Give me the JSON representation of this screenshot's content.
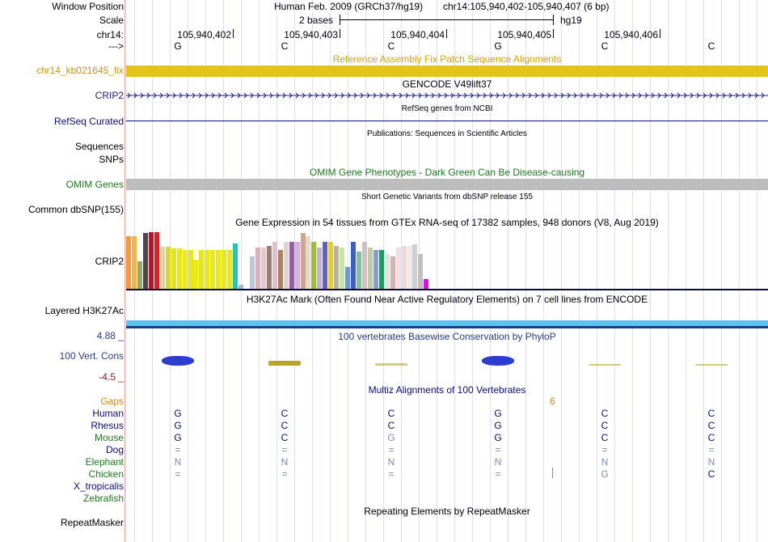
{
  "position": {
    "label": "Window Position",
    "assembly": "Human Feb. 2009 (GRCh37/hg19)",
    "range": "chr14:105,940,402-105,940,407 (6 bp)"
  },
  "scale": {
    "label": "Scale",
    "text": "2 bases",
    "db": "hg19"
  },
  "ruler": {
    "label": "chr14:",
    "coords": [
      "105,940,402",
      "105,940,403",
      "105,940,404",
      "105,940,405",
      "105,940,406"
    ]
  },
  "sequence": {
    "label": "--->",
    "bases": [
      "G",
      "C",
      "C",
      "G",
      "C",
      "C"
    ]
  },
  "fix_patch": {
    "title": "Reference Assembly Fix Patch Sequence Alignments",
    "label": "chr14_kb021645_fix",
    "color": "#e6c31a"
  },
  "gencode": {
    "title": "GENCODE V49lift37",
    "label": "CRIP2",
    "color": "#1f1b8a"
  },
  "refseq": {
    "title": "RefSeq genes from NCBI",
    "label": "RefSeq Curated",
    "color": "#0c0c78"
  },
  "publications": {
    "title": "Publications: Sequences in Scientific Articles",
    "label1": "Sequences",
    "label2": "SNPs"
  },
  "omim": {
    "title": "OMIM Gene Phenotypes - Dark Green Can Be Disease-causing",
    "label": "OMIM Genes",
    "color": "#bdbdbd"
  },
  "dbsnp": {
    "title": "Short Genetic Variants from dbSNP release 155",
    "label": "Common dbSNP(155)"
  },
  "gtex": {
    "title": "Gene Expression in 54 tissues from GTEx RNA-seq of 17382 samples, 948 donors (V8, Aug 2019)",
    "label": "CRIP2",
    "values": [
      68,
      68,
      35,
      72,
      73,
      73,
      54,
      54,
      52,
      52,
      50,
      50,
      38,
      50,
      50,
      50,
      50,
      50,
      50,
      58,
      5,
      0,
      42,
      53,
      53,
      55,
      60,
      50,
      60,
      60,
      60,
      72,
      68,
      60,
      53,
      60,
      60,
      55,
      53,
      28,
      60,
      48,
      60,
      53,
      50,
      50,
      45,
      42,
      53,
      55,
      55,
      57,
      45,
      12
    ],
    "colors": [
      "#f59a3a",
      "#f5b442",
      "#9aaa70",
      "#4a4a4a",
      "#b8162c",
      "#e01e24",
      "#d8d8a0",
      "#d8d830",
      "#e4e41c",
      "#e8e818",
      "#eaea1c",
      "#e6e618",
      "#e8e81a",
      "#e6e614",
      "#e8e81a",
      "#e8e81a",
      "#e8e81a",
      "#e8e81a",
      "#e8e81a",
      "#23c4c0",
      "#a0b8c8",
      "#6698c0",
      "#b8c8d8",
      "#e0b0b8",
      "#e8c8d0",
      "#9a8070",
      "#e0c0d0",
      "#b08060",
      "#e0d0d0",
      "#9060a0",
      "#d8b0d8",
      "#c8a890",
      "#e8d8c8",
      "#9ac030",
      "#c0b0e0",
      "#6060c8",
      "#e8d020",
      "#c0b0a0",
      "#c0e8a0",
      "#7098e0",
      "#3a60c8",
      "#80c0a0",
      "#d0c0c0",
      "#c8c8a0",
      "#80a0d0",
      "#10a060",
      "#e8e0e0",
      "#d8b0b0",
      "#f0e0e0",
      "#f0d8d8",
      "#f0e8e8",
      "#d0d0d0",
      "#c0c0c0",
      "#e010e0"
    ]
  },
  "h3k27ac": {
    "title": "H3K27Ac Mark (Often Found Near Active Regulatory Elements) on 7 cell lines from ENCODE",
    "label": "Layered H3K27Ac"
  },
  "phylop": {
    "title": "100 vertebrates Basewise Conservation by PhyloP",
    "label": "100 Vert. Cons",
    "max": "4.88 _",
    "min": "-4.5 _",
    "scores": [
      4.2,
      2.2,
      1.2,
      4.3,
      0.4,
      0.4
    ]
  },
  "multiz": {
    "title": "Multiz Alignments of 100 Vertebrates",
    "gaps_label": "Gaps",
    "gap_value": "6",
    "species": [
      {
        "name": "Human",
        "color": "#0c0c78",
        "bases": [
          "G",
          "C",
          "C",
          "G",
          "C",
          "C"
        ]
      },
      {
        "name": "Rhesus",
        "color": "#0c0c78",
        "bases": [
          "G",
          "C",
          "C",
          "G",
          "C",
          "C"
        ]
      },
      {
        "name": "Mouse",
        "color": "#1e7a1e",
        "bases": [
          "G",
          "C",
          "G",
          "G",
          "C",
          "C"
        ]
      },
      {
        "name": "Dog",
        "color": "#0c0c78",
        "bases": [
          "=",
          "=",
          "=",
          "=",
          "=",
          "="
        ]
      },
      {
        "name": "Elephant",
        "color": "#1e7a1e",
        "bases": [
          "N",
          "N",
          "N",
          "N",
          "N",
          "N"
        ]
      },
      {
        "name": "Chicken",
        "color": "#1e7a1e",
        "bases": [
          "=",
          "=",
          "=",
          "=",
          "G",
          "C"
        ]
      },
      {
        "name": "X_tropicalis",
        "color": "#0c0c78",
        "bases": [
          "",
          "",
          "",
          "",
          "",
          ""
        ]
      },
      {
        "name": "Zebrafish",
        "color": "#1e7a1e",
        "bases": [
          "",
          "",
          "",
          "",
          "",
          ""
        ]
      }
    ]
  },
  "repeatmasker": {
    "title": "Repeating Elements by RepeatMasker",
    "label": "RepeatMasker"
  }
}
